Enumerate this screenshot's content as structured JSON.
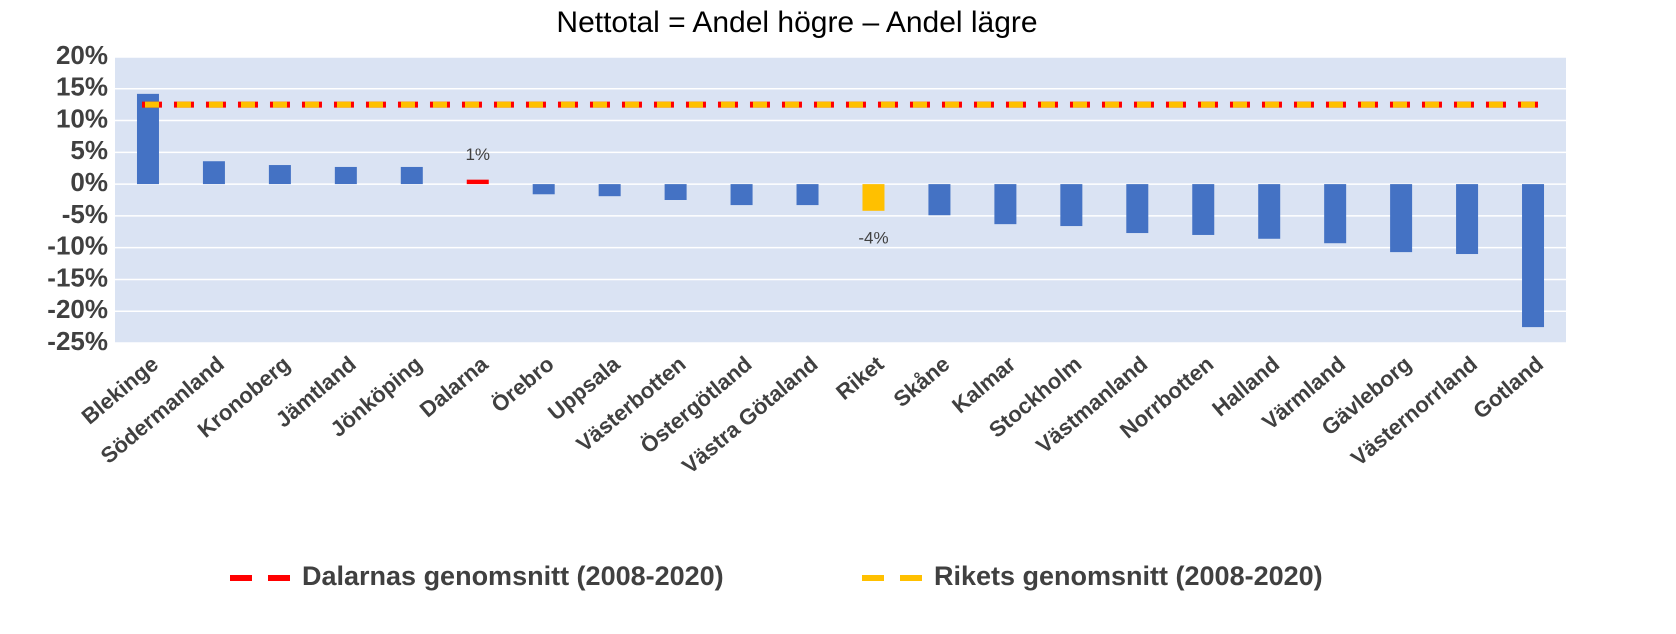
{
  "chart_data": {
    "type": "bar",
    "title": "Nettotal = Andel högre – Andel lägre",
    "categories": [
      "Blekinge",
      "Södermanland",
      "Kronoberg",
      "Jämtland",
      "Jönköping",
      "Dalarna",
      "Örebro",
      "Uppsala",
      "Västerbotten",
      "Östergötland",
      "Västra Götaland",
      "Riket",
      "Skåne",
      "Kalmar",
      "Stockholm",
      "Västmanland",
      "Norrbotten",
      "Halland",
      "Värmland",
      "Gävleborg",
      "Västernorrland",
      "Gotland"
    ],
    "values": [
      14.2,
      3.6,
      3.0,
      2.7,
      2.7,
      0.7,
      -1.6,
      -1.9,
      -2.5,
      -3.3,
      -3.3,
      -4.2,
      -4.9,
      -6.3,
      -6.6,
      -7.7,
      -8.0,
      -8.6,
      -9.3,
      -10.7,
      -11.0,
      -22.5
    ],
    "value_labels": [
      null,
      null,
      null,
      null,
      null,
      "1%",
      null,
      null,
      null,
      null,
      null,
      "-4%",
      null,
      null,
      null,
      null,
      null,
      null,
      null,
      null,
      null,
      null
    ],
    "colors": [
      "#4472c4",
      "#4472c4",
      "#4472c4",
      "#4472c4",
      "#4472c4",
      "#ff0000",
      "#4472c4",
      "#4472c4",
      "#4472c4",
      "#4472c4",
      "#4472c4",
      "#ffc000",
      "#4472c4",
      "#4472c4",
      "#4472c4",
      "#4472c4",
      "#4472c4",
      "#4472c4",
      "#4472c4",
      "#4472c4",
      "#4472c4",
      "#4472c4"
    ],
    "lines": [
      {
        "name": "Dalarnas genomsnitt (2008-2020)",
        "color": "#ff0000",
        "value": 12.5
      },
      {
        "name": "Rikets genomsnitt (2008-2020)",
        "color": "#ffc000",
        "value": 12.5
      }
    ],
    "ylim": [
      -25,
      20
    ],
    "yticks": [
      {
        "value": -25,
        "label": "-25%"
      },
      {
        "value": -20,
        "label": "-20%"
      },
      {
        "value": -15,
        "label": "-15%"
      },
      {
        "value": -10,
        "label": "-10%"
      },
      {
        "value": -5,
        "label": "-5%"
      },
      {
        "value": 0,
        "label": "0%"
      },
      {
        "value": 5,
        "label": "5%"
      },
      {
        "value": 10,
        "label": "10%"
      },
      {
        "value": 15,
        "label": "15%"
      },
      {
        "value": 20,
        "label": "20%"
      }
    ],
    "grid": true
  }
}
